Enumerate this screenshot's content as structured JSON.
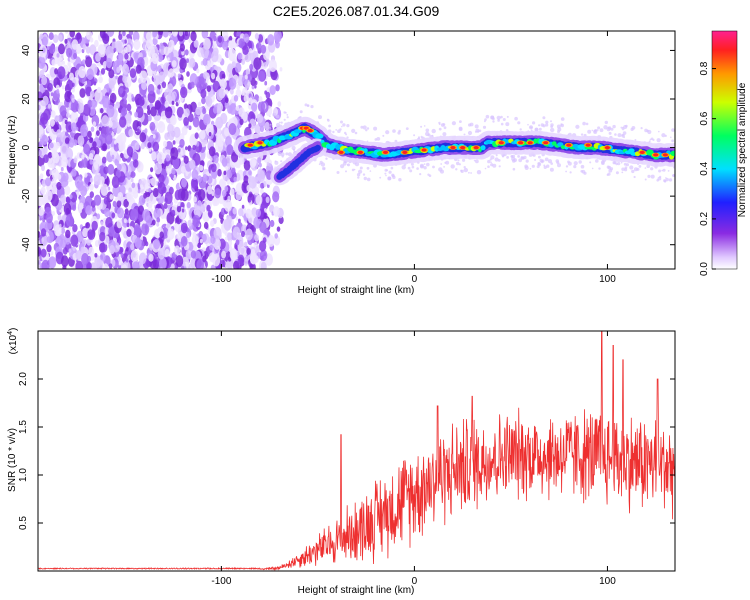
{
  "title": "C2E5.2026.087.01.34.G09",
  "chart_data": [
    {
      "type": "heatmap",
      "xlabel": "Height of straight line (km)",
      "ylabel": "Frequency (Hz)",
      "xlim": [
        -195,
        135
      ],
      "ylim": [
        -50,
        48
      ],
      "xticks": [
        -100,
        0,
        100
      ],
      "yticks": [
        -40,
        -20,
        0,
        20,
        40
      ],
      "colorbar": {
        "label": "Normalized spectral amplitude",
        "range": [
          0,
          0.95
        ],
        "ticks": [
          0.0,
          0.2,
          0.4,
          0.6,
          0.8
        ]
      },
      "noise_region_x": [
        -195,
        -75
      ],
      "ridge": {
        "x": [
          -88,
          -75,
          -65,
          -57,
          -52,
          -45,
          -35,
          -25,
          -15,
          -5,
          5,
          15,
          25,
          35,
          38,
          45,
          55,
          65,
          75,
          85,
          95,
          105,
          115,
          125,
          135
        ],
        "y": [
          0,
          2,
          5,
          8,
          6,
          1,
          -1,
          -2,
          -3,
          -2,
          -1,
          0,
          0,
          0,
          2,
          2,
          2,
          2,
          1,
          0,
          0,
          -1,
          -2,
          -3,
          -3
        ]
      },
      "branch": {
        "x": [
          -70,
          -62,
          -55,
          -50
        ],
        "y": [
          -12,
          -7,
          -2,
          0
        ]
      }
    },
    {
      "type": "line",
      "xlabel": "Height of straight line (km)",
      "ylabel": "SNR (10 * v/v)",
      "y_multiplier": "(x10",
      "y_multiplier_exp": "4",
      "y_multiplier_close": ")",
      "xlim": [
        -195,
        135
      ],
      "ylim": [
        0,
        2.5
      ],
      "xticks": [
        -100,
        0,
        100
      ],
      "yticks": [
        0.5,
        1.0,
        1.5,
        2.0
      ],
      "ytick_labels": [
        "0.5",
        "1.0",
        "1.5",
        "2.0"
      ],
      "series": [
        {
          "name": "SNR",
          "color": "#ee3030",
          "envelope_x": [
            -195,
            -80,
            -70,
            -60,
            -50,
            -40,
            -30,
            -20,
            -10,
            0,
            10,
            20,
            30,
            40,
            50,
            60,
            70,
            80,
            90,
            100,
            110,
            120,
            135
          ],
          "envelope_mean": [
            0.02,
            0.02,
            0.03,
            0.12,
            0.22,
            0.32,
            0.42,
            0.55,
            0.68,
            0.82,
            0.95,
            1.05,
            1.12,
            1.18,
            1.2,
            1.22,
            1.2,
            1.22,
            1.2,
            1.18,
            1.15,
            1.12,
            1.1
          ],
          "envelope_spread": [
            0.01,
            0.01,
            0.02,
            0.1,
            0.2,
            0.3,
            0.4,
            0.5,
            0.55,
            0.6,
            0.6,
            0.6,
            0.6,
            0.55,
            0.55,
            0.55,
            0.55,
            0.55,
            0.6,
            0.6,
            0.6,
            0.6,
            0.6
          ],
          "peaks": [
            {
              "x": -38,
              "y": 1.42
            },
            {
              "x": 12,
              "y": 1.72
            },
            {
              "x": 30,
              "y": 1.82
            },
            {
              "x": 97,
              "y": 2.5
            },
            {
              "x": 103,
              "y": 2.35
            },
            {
              "x": 108,
              "y": 2.2
            },
            {
              "x": 126,
              "y": 2.0
            }
          ]
        }
      ]
    }
  ]
}
